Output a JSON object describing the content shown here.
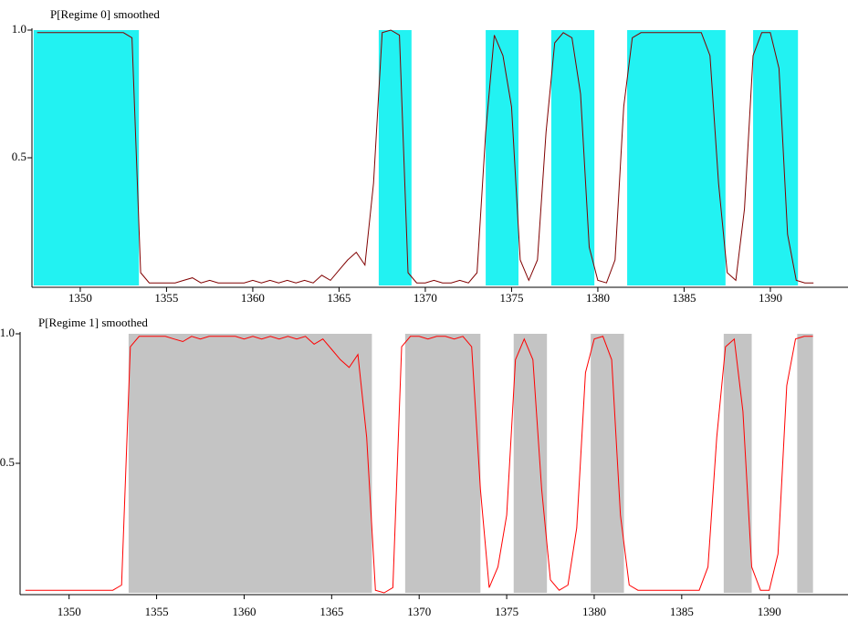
{
  "chart_data": [
    {
      "type": "line",
      "x": [
        1347.5,
        1348,
        1348.5,
        1349,
        1349.5,
        1350,
        1350.5,
        1351,
        1351.5,
        1352,
        1352.5,
        1353,
        1353.5,
        1354,
        1354.5,
        1355,
        1355.5,
        1356,
        1356.5,
        1357,
        1357.5,
        1358,
        1358.5,
        1359,
        1359.5,
        1360,
        1360.5,
        1361,
        1361.5,
        1362,
        1362.5,
        1363,
        1363.5,
        1364,
        1364.5,
        1365,
        1365.5,
        1366,
        1366.5,
        1367,
        1367.5,
        1368,
        1368.5,
        1369,
        1369.5,
        1370,
        1370.5,
        1371,
        1371.5,
        1372,
        1372.5,
        1373,
        1373.5,
        1374,
        1374.5,
        1375,
        1375.5,
        1376,
        1376.5,
        1377,
        1377.5,
        1378,
        1378.5,
        1379,
        1379.5,
        1380,
        1380.5,
        1381,
        1381.5,
        1382,
        1382.5,
        1383,
        1383.5,
        1384,
        1384.5,
        1385,
        1385.5,
        1386,
        1386.5,
        1387,
        1387.5,
        1388,
        1388.5,
        1389,
        1389.5,
        1390,
        1390.5,
        1391,
        1391.5,
        1392,
        1392.5
      ],
      "series": [
        {
          "name": "P[Regime 0] smoothed",
          "color": "#800000",
          "values": [
            0.99,
            0.99,
            0.99,
            0.99,
            0.99,
            0.99,
            0.99,
            0.99,
            0.99,
            0.99,
            0.99,
            0.97,
            0.05,
            0.01,
            0.01,
            0.01,
            0.01,
            0.02,
            0.03,
            0.01,
            0.02,
            0.01,
            0.01,
            0.01,
            0.01,
            0.02,
            0.01,
            0.02,
            0.01,
            0.02,
            0.01,
            0.02,
            0.01,
            0.04,
            0.02,
            0.06,
            0.1,
            0.13,
            0.08,
            0.4,
            0.99,
            1,
            0.98,
            0.05,
            0.01,
            0.01,
            0.02,
            0.01,
            0.01,
            0.02,
            0.01,
            0.05,
            0.6,
            0.98,
            0.9,
            0.7,
            0.1,
            0.02,
            0.1,
            0.6,
            0.95,
            0.99,
            0.97,
            0.75,
            0.15,
            0.02,
            0.01,
            0.1,
            0.7,
            0.97,
            0.99,
            0.99,
            0.99,
            0.99,
            0.99,
            0.99,
            0.99,
            0.99,
            0.9,
            0.4,
            0.05,
            0.02,
            0.3,
            0.9,
            0.99,
            0.99,
            0.85,
            0.2,
            0.02,
            0.01,
            0.01
          ]
        }
      ],
      "shaded_ranges": [
        [
          1347.3,
          1353.4
        ],
        [
          1367.3,
          1369.2
        ],
        [
          1373.5,
          1375.4
        ],
        [
          1377.3,
          1379.8
        ],
        [
          1381.7,
          1387.4
        ],
        [
          1389.0,
          1391.6
        ]
      ],
      "shade_color": "#22f2f2",
      "xlim": [
        1347.2,
        1394.5
      ],
      "ylim": [
        0,
        1
      ],
      "xticks": [
        1350,
        1355,
        1360,
        1365,
        1370,
        1375,
        1380,
        1385,
        1390
      ],
      "yticks": [
        0.5,
        {
          "value": 1,
          "label": "1.0"
        }
      ]
    },
    {
      "type": "line",
      "x": [
        1347.5,
        1348,
        1348.5,
        1349,
        1349.5,
        1350,
        1350.5,
        1351,
        1351.5,
        1352,
        1352.5,
        1353,
        1353.5,
        1354,
        1354.5,
        1355,
        1355.5,
        1356,
        1356.5,
        1357,
        1357.5,
        1358,
        1358.5,
        1359,
        1359.5,
        1360,
        1360.5,
        1361,
        1361.5,
        1362,
        1362.5,
        1363,
        1363.5,
        1364,
        1364.5,
        1365,
        1365.5,
        1366,
        1366.5,
        1367,
        1367.5,
        1368,
        1368.5,
        1369,
        1369.5,
        1370,
        1370.5,
        1371,
        1371.5,
        1372,
        1372.5,
        1373,
        1373.5,
        1374,
        1374.5,
        1375,
        1375.5,
        1376,
        1376.5,
        1377,
        1377.5,
        1378,
        1378.5,
        1379,
        1379.5,
        1380,
        1380.5,
        1381,
        1381.5,
        1382,
        1382.5,
        1383,
        1383.5,
        1384,
        1384.5,
        1385,
        1385.5,
        1386,
        1386.5,
        1387,
        1387.5,
        1388,
        1388.5,
        1389,
        1389.5,
        1390,
        1390.5,
        1391,
        1391.5,
        1392,
        1392.5
      ],
      "series": [
        {
          "name": "P[Regime 1] smoothed",
          "color": "#ff0000",
          "values": [
            0.01,
            0.01,
            0.01,
            0.01,
            0.01,
            0.01,
            0.01,
            0.01,
            0.01,
            0.01,
            0.01,
            0.03,
            0.95,
            0.99,
            0.99,
            0.99,
            0.99,
            0.98,
            0.97,
            0.99,
            0.98,
            0.99,
            0.99,
            0.99,
            0.99,
            0.98,
            0.99,
            0.98,
            0.99,
            0.98,
            0.99,
            0.98,
            0.99,
            0.96,
            0.98,
            0.94,
            0.9,
            0.87,
            0.92,
            0.6,
            0.01,
            0,
            0.02,
            0.95,
            0.99,
            0.99,
            0.98,
            0.99,
            0.99,
            0.98,
            0.99,
            0.95,
            0.4,
            0.02,
            0.1,
            0.3,
            0.9,
            0.98,
            0.9,
            0.4,
            0.05,
            0.01,
            0.03,
            0.25,
            0.85,
            0.98,
            0.99,
            0.9,
            0.3,
            0.03,
            0.01,
            0.01,
            0.01,
            0.01,
            0.01,
            0.01,
            0.01,
            0.01,
            0.1,
            0.6,
            0.95,
            0.98,
            0.7,
            0.1,
            0.01,
            0.01,
            0.15,
            0.8,
            0.98,
            0.99,
            0.99
          ]
        }
      ],
      "shaded_ranges": [
        [
          1353.4,
          1367.3
        ],
        [
          1369.2,
          1373.5
        ],
        [
          1375.4,
          1377.3
        ],
        [
          1379.8,
          1381.7
        ],
        [
          1387.4,
          1389.0
        ],
        [
          1391.6,
          1392.5
        ]
      ],
      "shade_color": "#c4c4c4",
      "xlim": [
        1347.2,
        1394.5
      ],
      "ylim": [
        0,
        1
      ],
      "xticks": [
        1350,
        1355,
        1360,
        1365,
        1370,
        1375,
        1380,
        1385,
        1390
      ],
      "yticks": [
        0.5,
        {
          "value": 1,
          "label": "1.0"
        }
      ]
    }
  ]
}
